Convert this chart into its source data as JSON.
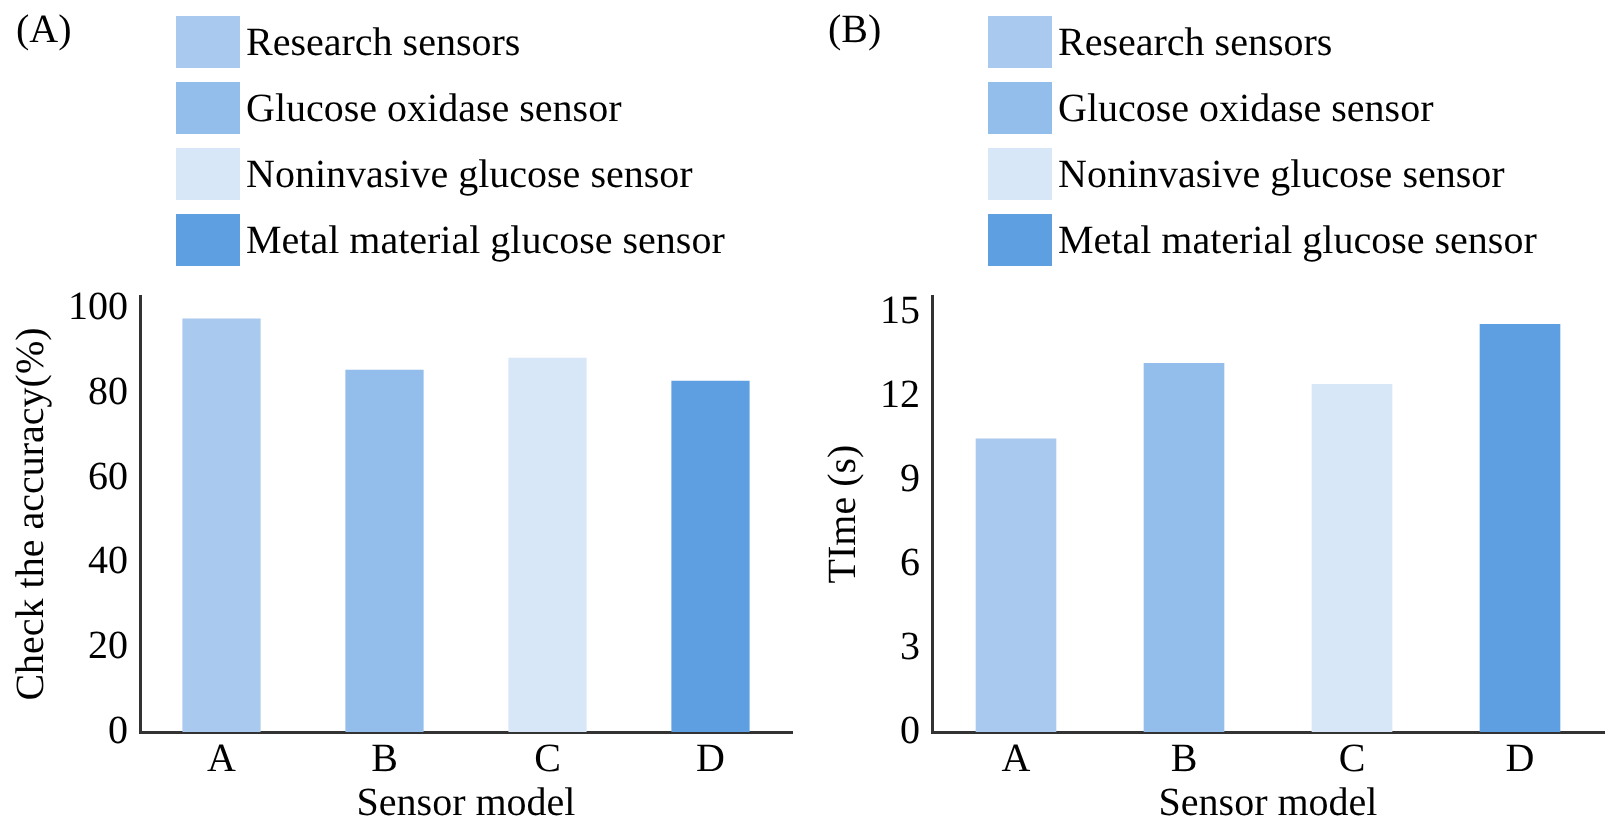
{
  "chart_data": [
    {
      "type": "bar",
      "title": "(A)",
      "xlabel": "Sensor model",
      "ylabel": "Check the accuracy(%)",
      "categories": [
        "A",
        "B",
        "C",
        "D"
      ],
      "legend": "top",
      "grid": false,
      "ylim": [
        0,
        103
      ],
      "yticks": [
        0,
        20,
        40,
        60,
        80,
        100
      ],
      "series": [
        {
          "name": "Research sensors",
          "color": "#a9c9ee",
          "values": [
            97.7,
            null,
            null,
            null
          ]
        },
        {
          "name": "Glucose oxidase sensor",
          "color": "#93bdea",
          "values": [
            null,
            85.6,
            null,
            null
          ]
        },
        {
          "name": "Noninvasive glucose sensor",
          "color": "#d8e7f7",
          "values": [
            null,
            null,
            88.4,
            null
          ]
        },
        {
          "name": "Metal material glucose sensor",
          "color": "#5e9fe2",
          "values": [
            null,
            null,
            null,
            83
          ]
        }
      ]
    },
    {
      "type": "bar",
      "title": "(B)",
      "xlabel": "Sensor model",
      "ylabel": "TIme (s)",
      "categories": [
        "A",
        "B",
        "C",
        "D"
      ],
      "legend": "top",
      "grid": false,
      "ylim": [
        0,
        15.6
      ],
      "yticks": [
        0,
        3,
        6,
        9,
        12,
        15
      ],
      "series": [
        {
          "name": "Research sensors",
          "color": "#a9c9ee",
          "values": [
            10.5,
            null,
            null,
            null
          ]
        },
        {
          "name": "Glucose oxidase sensor",
          "color": "#93bdea",
          "values": [
            null,
            13.2,
            null,
            null
          ]
        },
        {
          "name": "Noninvasive glucose sensor",
          "color": "#d8e7f7",
          "values": [
            null,
            null,
            12.45,
            null
          ]
        },
        {
          "name": "Metal material glucose sensor",
          "color": "#5e9fe2",
          "values": [
            null,
            null,
            null,
            14.6
          ]
        }
      ]
    }
  ]
}
